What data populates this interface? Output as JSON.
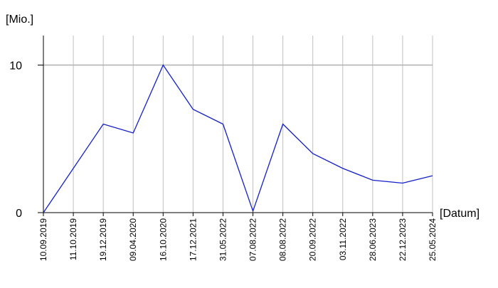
{
  "chart_data": {
    "type": "line",
    "y_label": "[Mio.]",
    "x_label": "[Datum]",
    "categories": [
      "10.09.2019",
      "11.10.2019",
      "19.12.2019",
      "09.04.2020",
      "16.10.2020",
      "17.12.2021",
      "31.05.2022",
      "07.08.2022",
      "08.08.2022",
      "20.09.2022",
      "03.11.2022",
      "28.06.2023",
      "22.12.2023",
      "25.05.2024"
    ],
    "series": [
      {
        "color": "#1420c8",
        "values": [
          0,
          3.0,
          6.0,
          5.4,
          10,
          7.0,
          6.0,
          0.1,
          6.0,
          4.0,
          3.0,
          2.2,
          2.0,
          2.5
        ]
      }
    ],
    "ylim": [
      0,
      12
    ],
    "yticks": [
      0,
      10
    ],
    "grid": true
  }
}
